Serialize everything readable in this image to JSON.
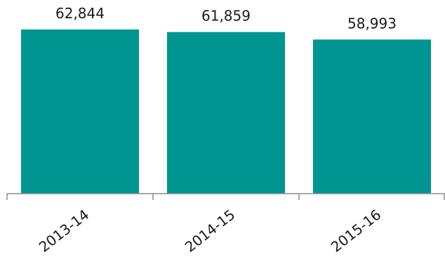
{
  "chart_data": {
    "type": "bar",
    "categories": [
      "2013-14",
      "2014-15",
      "2015-16"
    ],
    "values": [
      62844,
      61859,
      58993
    ],
    "value_labels": [
      "62,844",
      "61,859",
      "58,993"
    ],
    "bar_color": "#009591",
    "axis_color": "#8c8c8c",
    "ylim": [
      0,
      66000
    ],
    "grid": false,
    "title": "",
    "xlabel": "",
    "ylabel": ""
  }
}
